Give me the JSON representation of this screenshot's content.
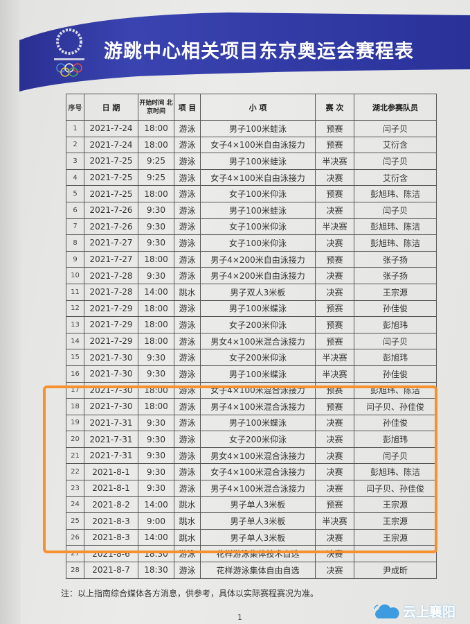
{
  "header": {
    "title": "游跳中心相关项目东京奥运会赛程表",
    "logo": "Tokyo 2020 Olympic emblem",
    "banner_color": "#28309a"
  },
  "table": {
    "columns": [
      "序号",
      "日 期",
      "开始时间 北京时间",
      "项 目",
      "小 项",
      "赛 次",
      "湖北参赛队员"
    ],
    "rows": [
      [
        "1",
        "2021-7-24",
        "18:00",
        "游泳",
        "男子100米蛙泳",
        "预赛",
        "闫子贝"
      ],
      [
        "2",
        "2021-7-24",
        "18:00",
        "游泳",
        "女子4×100米自由泳接力",
        "预赛",
        "艾衍含"
      ],
      [
        "3",
        "2021-7-25",
        "9:25",
        "游泳",
        "男子100米蛙泳",
        "半决赛",
        "闫子贝"
      ],
      [
        "4",
        "2021-7-25",
        "9:25",
        "游泳",
        "女子4×100米自由泳接力",
        "决赛",
        "艾衍含"
      ],
      [
        "5",
        "2021-7-25",
        "18:00",
        "游泳",
        "女子100米仰泳",
        "预赛",
        "彭旭玮、陈洁"
      ],
      [
        "6",
        "2021-7-26",
        "9:30",
        "游泳",
        "男子100米蛙泳",
        "决赛",
        "闫子贝"
      ],
      [
        "7",
        "2021-7-26",
        "9:30",
        "游泳",
        "女子100米仰泳",
        "半决赛",
        "彭旭玮、陈洁"
      ],
      [
        "8",
        "2021-7-27",
        "9:30",
        "游泳",
        "女子100米仰泳",
        "决赛",
        "彭旭玮、陈洁"
      ],
      [
        "9",
        "2021-7-27",
        "18:00",
        "游泳",
        "男子4×200米自由泳接力",
        "预赛",
        "张子扬"
      ],
      [
        "10",
        "2021-7-28",
        "9:30",
        "游泳",
        "男子4×200米自由泳接力",
        "决赛",
        "张子扬"
      ],
      [
        "11",
        "2021-7-28",
        "14:00",
        "跳水",
        "男子双人3米板",
        "决赛",
        "王宗源"
      ],
      [
        "12",
        "2021-7-29",
        "18:00",
        "游泳",
        "男子100米蝶泳",
        "预赛",
        "孙佳俊"
      ],
      [
        "13",
        "2021-7-29",
        "18:00",
        "游泳",
        "女子200米仰泳",
        "预赛",
        "彭旭玮"
      ],
      [
        "14",
        "2021-7-29",
        "18:00",
        "游泳",
        "男女4×100米混合泳接力",
        "预赛",
        "闫子贝"
      ],
      [
        "15",
        "2021-7-30",
        "9:30",
        "游泳",
        "女子200米仰泳",
        "半决赛",
        "彭旭玮"
      ],
      [
        "16",
        "2021-7-30",
        "9:30",
        "游泳",
        "男子100米蝶泳",
        "半决赛",
        "孙佳俊"
      ],
      [
        "17",
        "2021-7-30",
        "18:00",
        "游泳",
        "女子4×100米混合泳接力",
        "预赛",
        "彭旭玮、陈洁"
      ],
      [
        "18",
        "2021-7-30",
        "18:00",
        "游泳",
        "男子4×100米混合泳接力",
        "预赛",
        "闫子贝、孙佳俊"
      ],
      [
        "19",
        "2021-7-31",
        "9:30",
        "游泳",
        "男子100米蝶泳",
        "决赛",
        "孙佳俊"
      ],
      [
        "20",
        "2021-7-31",
        "9:30",
        "游泳",
        "女子200米仰泳",
        "决赛",
        "彭旭玮"
      ],
      [
        "21",
        "2021-7-31",
        "9:30",
        "游泳",
        "男女4×100米混合泳接力",
        "决赛",
        "闫子贝"
      ],
      [
        "22",
        "2021-8-1",
        "9:30",
        "游泳",
        "女子4×100米混合泳接力",
        "决赛",
        "彭旭玮、陈洁"
      ],
      [
        "23",
        "2021-8-1",
        "9:30",
        "游泳",
        "男子4×100米混合泳接力",
        "决赛",
        "闫子贝、孙佳俊"
      ],
      [
        "24",
        "2021-8-2",
        "14:00",
        "跳水",
        "男子单人3米板",
        "预赛",
        "王宗源"
      ],
      [
        "25",
        "2021-8-3",
        "9:00",
        "跳水",
        "男子单人3米板",
        "半决赛",
        "王宗源"
      ],
      [
        "26",
        "2021-8-3",
        "14:00",
        "跳水",
        "男子单人3米板",
        "决赛",
        "王宗源"
      ],
      [
        "27",
        "2021-8-6",
        "18:30",
        "游泳",
        "花样游泳集体技术自选",
        "决赛",
        ""
      ],
      [
        "28",
        "2021-8-7",
        "18:30",
        "游泳",
        "花样游泳集体自由自选",
        "决赛",
        "尹成昕"
      ]
    ],
    "highlight_rows": [
      "17",
      "26"
    ],
    "highlight_color": "#f5922f"
  },
  "footer": {
    "note": "注：以上指南综合媒体各方消息，供参考，具体以实际赛程赛况为准。",
    "page_number": "1"
  },
  "watermark": {
    "text": "云上襄阳",
    "icon": "cloud-icon",
    "color": "#3d9be0"
  }
}
